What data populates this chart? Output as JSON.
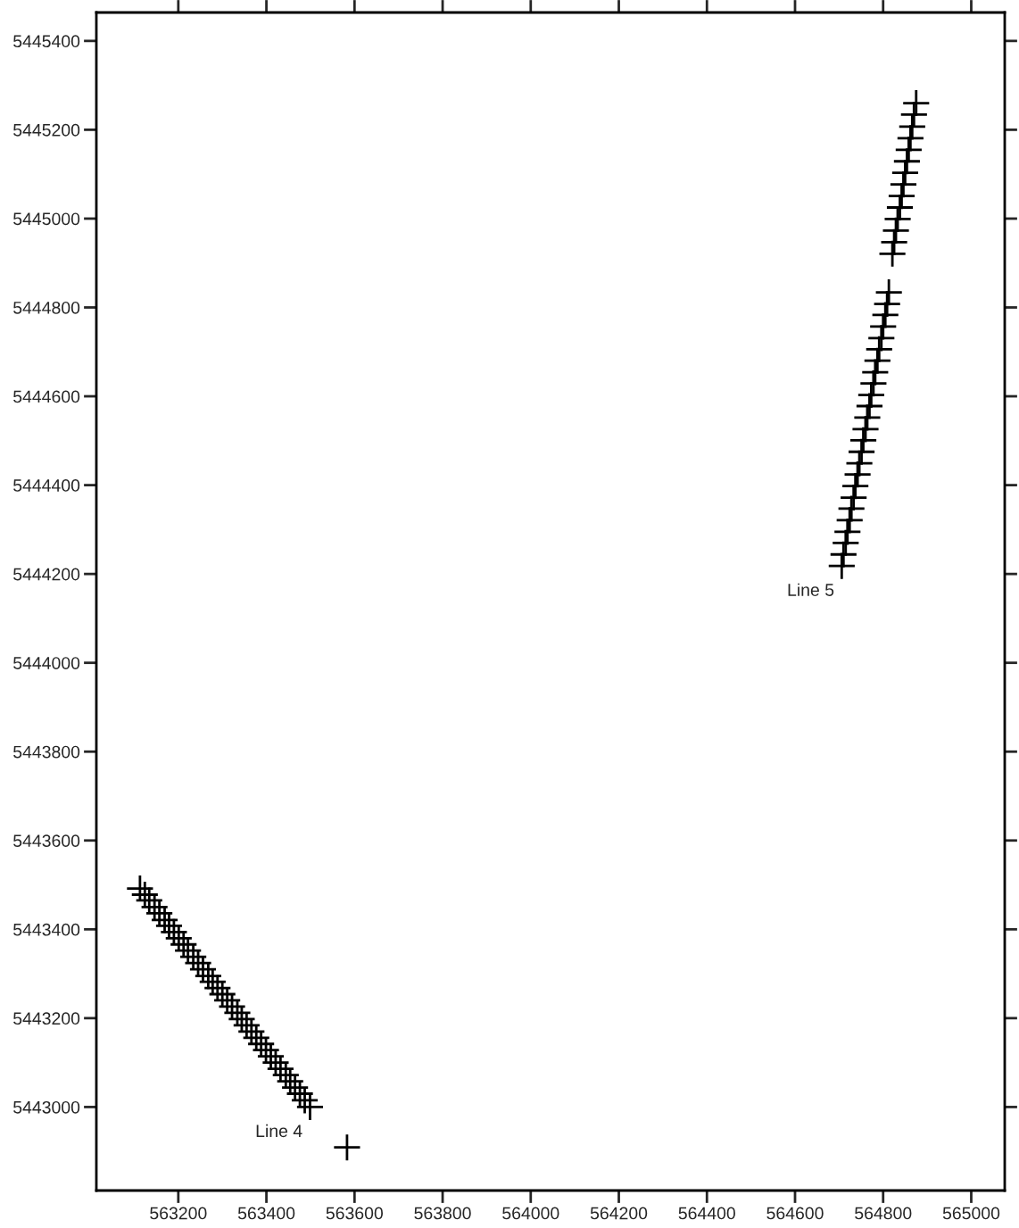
{
  "chart_data": {
    "type": "scatter",
    "marker": "cross",
    "grid": false,
    "legend": false,
    "tick_labels": "xy",
    "xlim": [
      563014,
      565076
    ],
    "ylim": [
      5442812,
      5445464
    ],
    "xticks": [
      563200,
      563400,
      563600,
      563800,
      564000,
      564200,
      564400,
      564600,
      564800,
      565000
    ],
    "yticks": [
      5443000,
      5443200,
      5443400,
      5443600,
      5443800,
      5444000,
      5444200,
      5444400,
      5444600,
      5444800,
      5445000,
      5445200,
      5445400
    ],
    "series": [
      {
        "color": "#000000",
        "x": [
          563113,
          563124,
          563134,
          563146,
          563157,
          563169,
          563179,
          563190,
          563201,
          563212,
          563222,
          563234,
          563245,
          563256,
          563268,
          563278,
          563289,
          563300,
          563311,
          563322,
          563334,
          563344,
          563355,
          563366,
          563377,
          563388,
          563399,
          563410,
          563421,
          563432,
          563444,
          563454,
          563465,
          563476,
          563487,
          563499,
          563583
        ],
        "values": [
          5443492,
          5443478,
          5443465,
          5443450,
          5443436,
          5443421,
          5443408,
          5443394,
          5443380,
          5443366,
          5443352,
          5443338,
          5443324,
          5443310,
          5443295,
          5443282,
          5443268,
          5443254,
          5443240,
          5443226,
          5443212,
          5443198,
          5443184,
          5443170,
          5443156,
          5443142,
          5443128,
          5443114,
          5443100,
          5443086,
          5443072,
          5443058,
          5443044,
          5443030,
          5443015,
          5443000,
          5442909
        ]
      },
      {
        "color": "#000000",
        "x": [
          564706,
          564710,
          564715,
          564719,
          564724,
          564728,
          564733,
          564737,
          564742,
          564746,
          564751,
          564755,
          564760,
          564764,
          564769,
          564773,
          564778,
          564782,
          564787,
          564791,
          564796,
          564800,
          564805,
          564809,
          564813,
          564821,
          564825,
          564829,
          564833,
          564838,
          564842,
          564846,
          564850,
          564854,
          564858,
          564862,
          564866,
          564870,
          564875
        ],
        "values": [
          5444218,
          5444244,
          5444270,
          5444295,
          5444321,
          5444347,
          5444372,
          5444398,
          5444424,
          5444449,
          5444475,
          5444501,
          5444526,
          5444552,
          5444578,
          5444603,
          5444629,
          5444654,
          5444680,
          5444706,
          5444731,
          5444757,
          5444783,
          5444808,
          5444834,
          5444921,
          5444947,
          5444973,
          5444999,
          5445025,
          5445051,
          5445077,
          5445103,
          5445129,
          5445155,
          5445181,
          5445207,
          5445234,
          5445260
        ]
      }
    ],
    "annotations": [
      {
        "text": "Line 4",
        "x": 563499,
        "y": 5443000
      },
      {
        "text": "Line 5",
        "x": 564706,
        "y": 5444218
      }
    ]
  }
}
